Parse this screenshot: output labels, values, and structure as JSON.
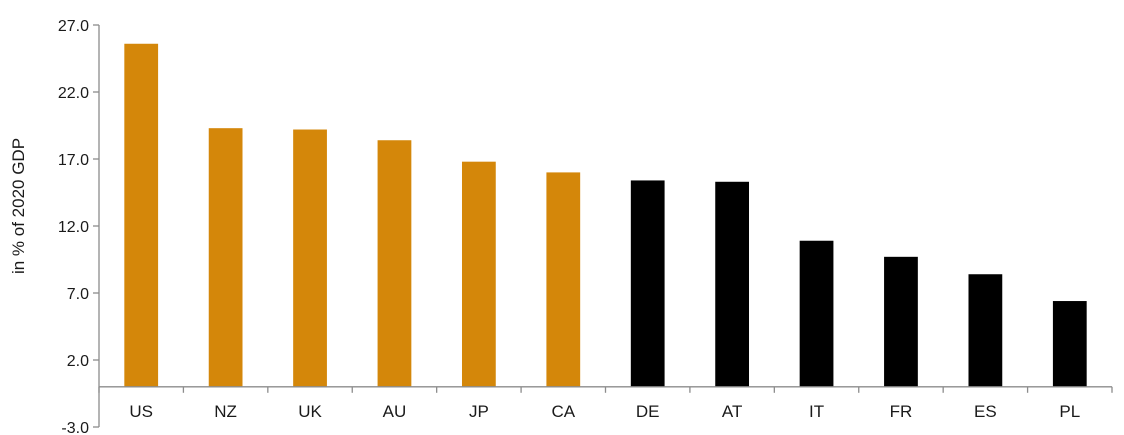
{
  "chart_data": {
    "type": "bar",
    "title": "",
    "xlabel": "",
    "ylabel": "in % of 2020 GDP",
    "categories": [
      "US",
      "NZ",
      "UK",
      "AU",
      "JP",
      "CA",
      "DE",
      "AT",
      "IT",
      "FR",
      "ES",
      "PL"
    ],
    "values": [
      25.6,
      19.3,
      19.2,
      18.4,
      16.8,
      16.0,
      15.4,
      15.3,
      10.9,
      9.7,
      8.4,
      6.4
    ],
    "bar_colors": [
      "#d4870a",
      "#d4870a",
      "#d4870a",
      "#d4870a",
      "#d4870a",
      "#d4870a",
      "#000000",
      "#000000",
      "#000000",
      "#000000",
      "#000000",
      "#000000"
    ],
    "yticks": [
      -3.0,
      2.0,
      7.0,
      12.0,
      17.0,
      22.0,
      27.0
    ],
    "ytick_labels": [
      "-3.0",
      "2.0",
      "7.0",
      "12.0",
      "17.0",
      "22.0",
      "27.0"
    ],
    "ylim": [
      -3.0,
      27.0
    ],
    "grid": false,
    "legend": "none"
  }
}
